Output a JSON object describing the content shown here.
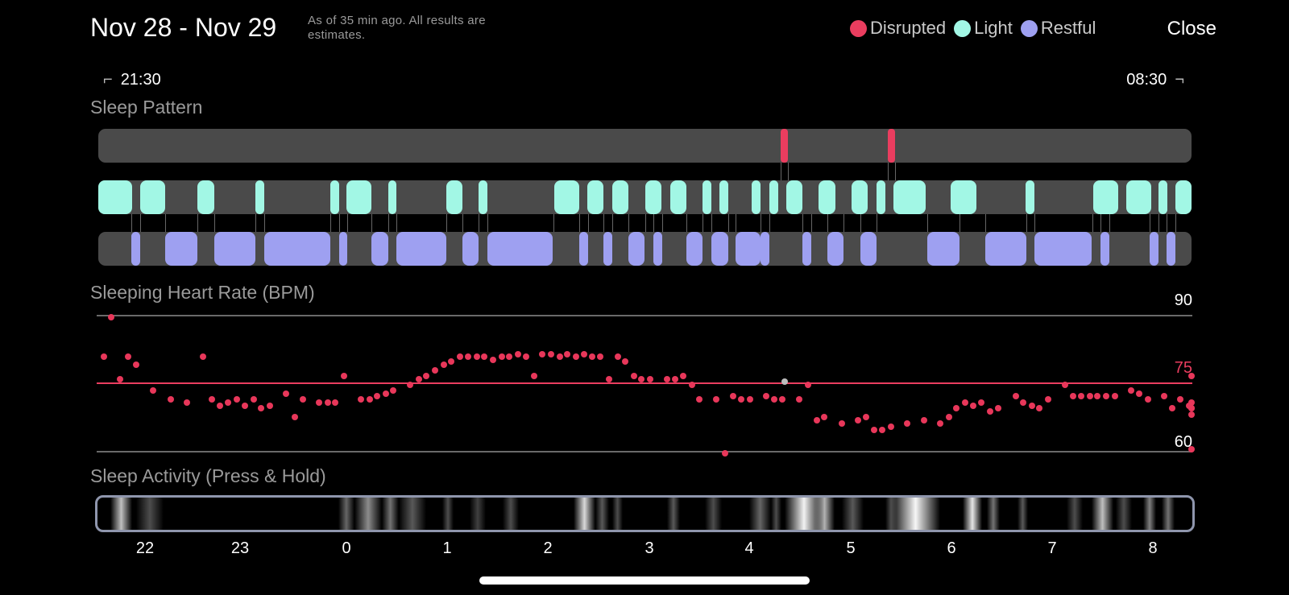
{
  "header": {
    "title": "Nov 28 - Nov 29",
    "subtitle": "As of 35 min ago. All results are estimates.",
    "close_label": "Close"
  },
  "legend": [
    {
      "label": "Disrupted",
      "color": "#ea3d5f"
    },
    {
      "label": "Light",
      "color": "#a2f7e5"
    },
    {
      "label": "Restful",
      "color": "#9ea0f1"
    }
  ],
  "time_range": {
    "start": "21:30",
    "end": "08:30"
  },
  "sleep_pattern": {
    "title": "Sleep Pattern",
    "disrupted": [
      [
        0.624,
        0.007
      ],
      [
        0.722,
        0.007
      ]
    ],
    "light": [
      [
        0,
        0.031
      ],
      [
        0.038,
        0.023
      ],
      [
        0.091,
        0.015
      ],
      [
        0.144,
        0.008
      ],
      [
        0.212,
        0.008
      ],
      [
        0.227,
        0.023
      ],
      [
        0.265,
        0.008
      ],
      [
        0.318,
        0.015
      ],
      [
        0.348,
        0.008
      ],
      [
        0.417,
        0.023
      ],
      [
        0.447,
        0.015
      ],
      [
        0.47,
        0.015
      ],
      [
        0.5,
        0.015
      ],
      [
        0.523,
        0.015
      ],
      [
        0.553,
        0.008
      ],
      [
        0.568,
        0.008
      ],
      [
        0.598,
        0.008
      ],
      [
        0.614,
        0.008
      ],
      [
        0.629,
        0.015
      ],
      [
        0.659,
        0.015
      ],
      [
        0.689,
        0.015
      ],
      [
        0.712,
        0.008
      ],
      [
        0.727,
        0.03
      ],
      [
        0.78,
        0.023
      ],
      [
        0.848,
        0.008
      ],
      [
        0.91,
        0.023
      ],
      [
        0.94,
        0.023
      ],
      [
        0.97,
        0.008
      ],
      [
        0.985,
        0.015
      ]
    ],
    "restful": [
      [
        0.03,
        0.008
      ],
      [
        0.061,
        0.03
      ],
      [
        0.106,
        0.038
      ],
      [
        0.152,
        0.06
      ],
      [
        0.22,
        0.008
      ],
      [
        0.25,
        0.015
      ],
      [
        0.273,
        0.045
      ],
      [
        0.333,
        0.015
      ],
      [
        0.356,
        0.06
      ],
      [
        0.44,
        0.008
      ],
      [
        0.462,
        0.008
      ],
      [
        0.485,
        0.015
      ],
      [
        0.508,
        0.008
      ],
      [
        0.538,
        0.015
      ],
      [
        0.561,
        0.015
      ],
      [
        0.583,
        0.023
      ],
      [
        0.606,
        0.008
      ],
      [
        0.644,
        0.008
      ],
      [
        0.667,
        0.015
      ],
      [
        0.697,
        0.015
      ],
      [
        0.758,
        0.03
      ],
      [
        0.811,
        0.038
      ],
      [
        0.856,
        0.053
      ],
      [
        0.917,
        0.008
      ],
      [
        0.962,
        0.008
      ],
      [
        0.977,
        0.008
      ]
    ]
  },
  "heart_rate": {
    "title": "Sleeping Heart Rate (BPM)",
    "max_label": "90",
    "avg_label": "75",
    "min_label": "60",
    "ymin": 60,
    "ymax": 90,
    "avg": 75,
    "points": [
      [
        0.005,
        80.9
      ],
      [
        0.012,
        89.7
      ],
      [
        0.02,
        76
      ],
      [
        0.027,
        80.9
      ],
      [
        0.035,
        79.2
      ],
      [
        0.05,
        73.5
      ],
      [
        0.066,
        71.6
      ],
      [
        0.081,
        70.9
      ],
      [
        0.096,
        80.9
      ],
      [
        0.104,
        71.6
      ],
      [
        0.111,
        70.2
      ],
      [
        0.119,
        70.9
      ],
      [
        0.127,
        71.6
      ],
      [
        0.134,
        70.2
      ],
      [
        0.142,
        71.6
      ],
      [
        0.149,
        69.5
      ],
      [
        0.157,
        70.2
      ],
      [
        0.172,
        72.8
      ],
      [
        0.18,
        67.6
      ],
      [
        0.187,
        71.6
      ],
      [
        0.202,
        70.9
      ],
      [
        0.21,
        70.9
      ],
      [
        0.217,
        70.9
      ],
      [
        0.225,
        76.6
      ],
      [
        0.24,
        71.6
      ],
      [
        0.248,
        71.6
      ],
      [
        0.255,
        72.2
      ],
      [
        0.263,
        72.8
      ],
      [
        0.27,
        73.5
      ],
      [
        0.285,
        74.8
      ],
      [
        0.293,
        76
      ],
      [
        0.3,
        76.6
      ],
      [
        0.308,
        77.9
      ],
      [
        0.316,
        79.2
      ],
      [
        0.323,
        79.8
      ],
      [
        0.331,
        80.9
      ],
      [
        0.338,
        80.9
      ],
      [
        0.346,
        80.9
      ],
      [
        0.353,
        80.9
      ],
      [
        0.361,
        80.3
      ],
      [
        0.369,
        80.9
      ],
      [
        0.376,
        80.9
      ],
      [
        0.384,
        81.4
      ],
      [
        0.391,
        80.9
      ],
      [
        0.399,
        76.6
      ],
      [
        0.406,
        81.4
      ],
      [
        0.414,
        81.4
      ],
      [
        0.422,
        80.9
      ],
      [
        0.429,
        81.4
      ],
      [
        0.437,
        80.9
      ],
      [
        0.444,
        81.4
      ],
      [
        0.452,
        80.9
      ],
      [
        0.459,
        80.9
      ],
      [
        0.467,
        76
      ],
      [
        0.475,
        80.9
      ],
      [
        0.482,
        79.8
      ],
      [
        0.49,
        76.6
      ],
      [
        0.497,
        76
      ],
      [
        0.505,
        76
      ],
      [
        0.52,
        76
      ],
      [
        0.528,
        76
      ],
      [
        0.535,
        76.6
      ],
      [
        0.543,
        74.8
      ],
      [
        0.55,
        71.6
      ],
      [
        0.565,
        71.6
      ],
      [
        0.573,
        59.6
      ],
      [
        0.581,
        72.2
      ],
      [
        0.588,
        71.6
      ],
      [
        0.596,
        71.6
      ],
      [
        0.611,
        72.2
      ],
      [
        0.618,
        71.6
      ],
      [
        0.626,
        71.6
      ],
      [
        0.641,
        71.6
      ],
      [
        0.649,
        74.8
      ],
      [
        0.657,
        66.9
      ],
      [
        0.664,
        67.6
      ],
      [
        0.68,
        66.2
      ],
      [
        0.695,
        66.9
      ],
      [
        0.702,
        67.6
      ],
      [
        0.71,
        64.8
      ],
      [
        0.717,
        64.8
      ],
      [
        0.725,
        65.5
      ],
      [
        0.74,
        66.2
      ],
      [
        0.755,
        66.9
      ],
      [
        0.77,
        66.2
      ],
      [
        0.778,
        67.6
      ],
      [
        0.785,
        69.5
      ],
      [
        0.793,
        70.9
      ],
      [
        0.8,
        70.2
      ],
      [
        0.808,
        70.9
      ],
      [
        0.816,
        68.9
      ],
      [
        0.823,
        69.5
      ],
      [
        0.839,
        72.2
      ],
      [
        0.846,
        70.9
      ],
      [
        0.854,
        70.2
      ],
      [
        0.861,
        69.5
      ],
      [
        0.869,
        71.6
      ],
      [
        0.884,
        74.8
      ],
      [
        0.892,
        72.2
      ],
      [
        0.899,
        72.2
      ],
      [
        0.907,
        72.2
      ],
      [
        0.914,
        72.2
      ],
      [
        0.922,
        72.2
      ],
      [
        0.93,
        72.2
      ],
      [
        0.945,
        73.5
      ],
      [
        0.952,
        72.8
      ],
      [
        0.96,
        71.6
      ],
      [
        0.975,
        72.2
      ],
      [
        0.982,
        69.5
      ],
      [
        0.99,
        71.6
      ],
      [
        0.998,
        70.2
      ],
      [
        1.005,
        60.5
      ],
      [
        1.013,
        70.9
      ],
      [
        1.028,
        69.5
      ],
      [
        1.035,
        69.5
      ],
      [
        1.051,
        68.2
      ],
      [
        1.066,
        76.6
      ]
    ],
    "highlight": [
      0.628,
      75.5
    ]
  },
  "sleep_activity": {
    "title": "Sleep Activity (Press & Hold)",
    "bands": [
      [
        0.012,
        0.02,
        0.75
      ],
      [
        0.035,
        0.025,
        0.3
      ],
      [
        0.22,
        0.015,
        0.4
      ],
      [
        0.235,
        0.025,
        0.55
      ],
      [
        0.26,
        0.015,
        0.45
      ],
      [
        0.275,
        0.025,
        0.35
      ],
      [
        0.315,
        0.01,
        0.3
      ],
      [
        0.34,
        0.015,
        0.25
      ],
      [
        0.37,
        0.015,
        0.3
      ],
      [
        0.435,
        0.02,
        0.85
      ],
      [
        0.455,
        0.012,
        0.35
      ],
      [
        0.47,
        0.01,
        0.3
      ],
      [
        0.52,
        0.012,
        0.35
      ],
      [
        0.555,
        0.015,
        0.3
      ],
      [
        0.595,
        0.02,
        0.4
      ],
      [
        0.615,
        0.01,
        0.3
      ],
      [
        0.628,
        0.035,
        0.95
      ],
      [
        0.655,
        0.018,
        0.7
      ],
      [
        0.68,
        0.02,
        0.35
      ],
      [
        0.72,
        0.01,
        0.3
      ],
      [
        0.725,
        0.045,
        0.97
      ],
      [
        0.79,
        0.018,
        0.9
      ],
      [
        0.812,
        0.012,
        0.45
      ],
      [
        0.84,
        0.01,
        0.35
      ],
      [
        0.885,
        0.015,
        0.3
      ],
      [
        0.908,
        0.02,
        0.75
      ],
      [
        0.93,
        0.015,
        0.3
      ],
      [
        0.955,
        0.012,
        0.5
      ],
      [
        0.972,
        0.012,
        0.45
      ]
    ]
  },
  "x_axis": [
    "22",
    "23",
    "0",
    "1",
    "2",
    "3",
    "4",
    "5",
    "6",
    "7",
    "8"
  ]
}
